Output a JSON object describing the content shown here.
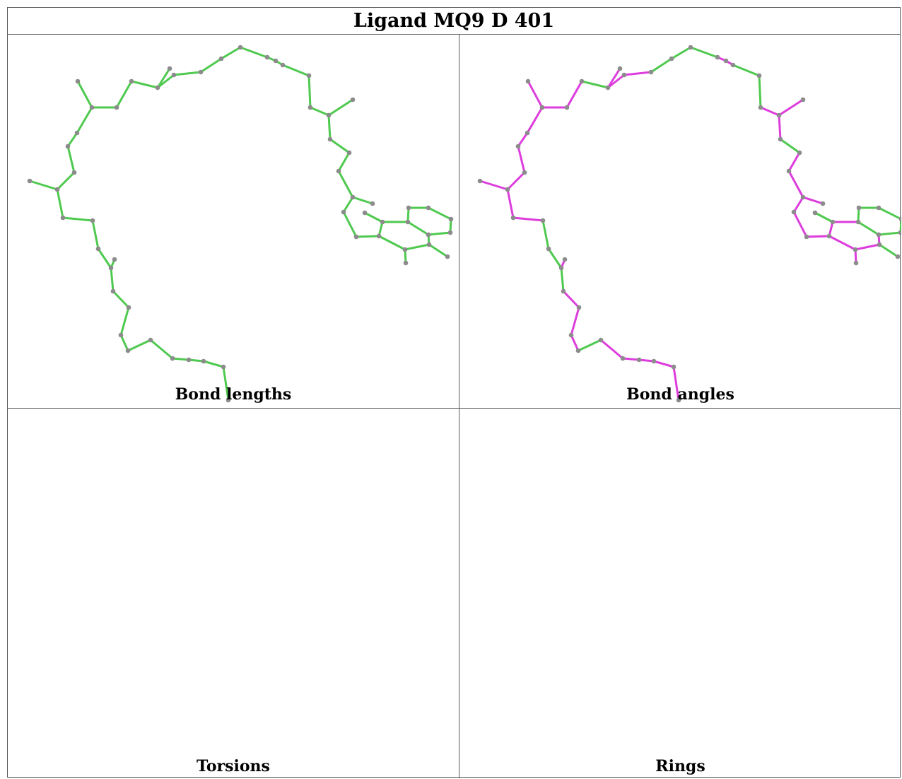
{
  "title": "Ligand MQ9 D 401",
  "panels": [
    {
      "id": "bond-lengths",
      "caption": "Bond lengths"
    },
    {
      "id": "bond-angles",
      "caption": "Bond angles"
    },
    {
      "id": "torsions",
      "caption": "Torsions"
    },
    {
      "id": "rings",
      "caption": "Rings"
    }
  ],
  "colors": {
    "green": "#4fc94f",
    "magenta": "#dd3ddd",
    "gray": "#b8b8b8",
    "atom": "#8c8c8c",
    "border": "#5a5a5a"
  }
}
